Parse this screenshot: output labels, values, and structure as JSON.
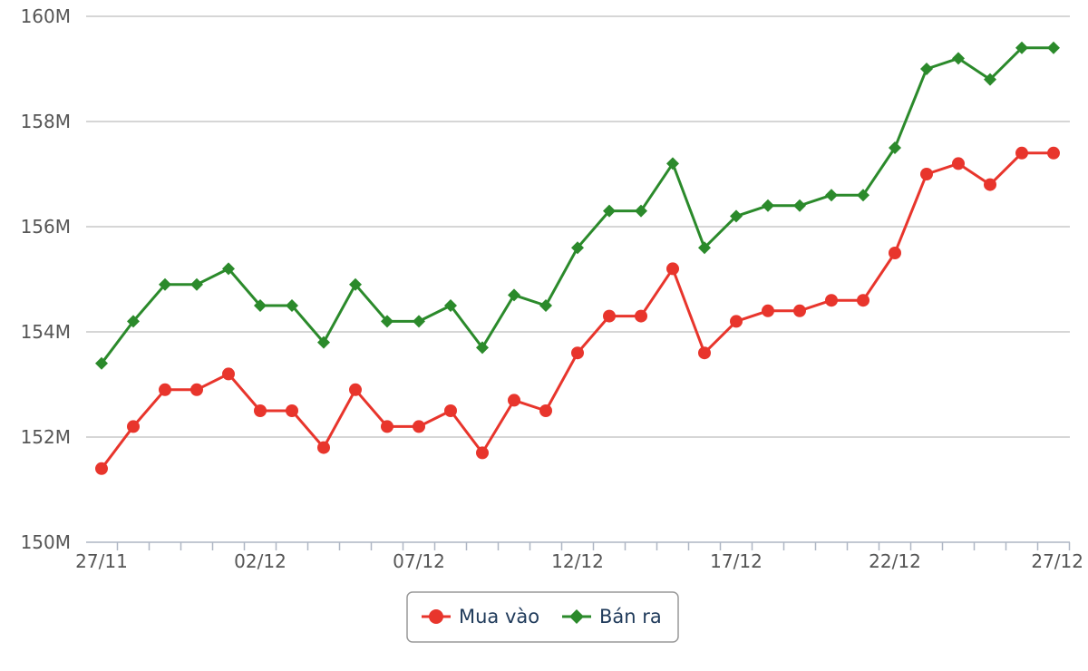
{
  "chart_data": {
    "type": "line",
    "title": "",
    "xlabel": "",
    "ylabel": "",
    "x": [
      "27/11",
      "28/11",
      "29/11",
      "30/11",
      "01/12",
      "02/12",
      "03/12",
      "04/12",
      "05/12",
      "06/12",
      "07/12",
      "08/12",
      "09/12",
      "10/12",
      "11/12",
      "12/12",
      "13/12",
      "14/12",
      "15/12",
      "16/12",
      "17/12",
      "18/12",
      "19/12",
      "20/12",
      "21/12",
      "22/12",
      "23/12",
      "24/12",
      "25/12",
      "26/12",
      "27/12"
    ],
    "x_tick_labels": [
      "27/11",
      "02/12",
      "07/12",
      "12/12",
      "17/12",
      "22/12",
      "27/12"
    ],
    "y_ticks": [
      150,
      152,
      154,
      156,
      158,
      160
    ],
    "y_tick_labels": [
      "150M",
      "152M",
      "154M",
      "156M",
      "158M",
      "160M"
    ],
    "ylim": [
      150,
      160
    ],
    "unit_multiplier": 1000000,
    "grid": true,
    "legend_position": "bottom-center",
    "series": [
      {
        "name": "Mua vào",
        "color": "#e8352c",
        "marker": "circle",
        "values": [
          151.4,
          152.2,
          152.9,
          152.9,
          153.2,
          152.5,
          152.5,
          151.8,
          152.9,
          152.2,
          152.2,
          152.5,
          151.7,
          152.7,
          152.5,
          153.6,
          154.3,
          154.3,
          155.2,
          153.6,
          154.2,
          154.4,
          154.4,
          154.6,
          154.6,
          155.5,
          157.0,
          157.2,
          156.8,
          157.4,
          157.4
        ]
      },
      {
        "name": "Bán ra",
        "color": "#2b8a2b",
        "marker": "diamond",
        "values": [
          153.4,
          154.2,
          154.9,
          154.9,
          155.2,
          154.5,
          154.5,
          153.8,
          154.9,
          154.2,
          154.2,
          154.5,
          153.7,
          154.7,
          154.5,
          155.6,
          156.3,
          156.3,
          157.2,
          155.6,
          156.2,
          156.4,
          156.4,
          156.6,
          156.6,
          157.5,
          159.0,
          159.2,
          158.8,
          159.4,
          159.4
        ]
      }
    ]
  }
}
